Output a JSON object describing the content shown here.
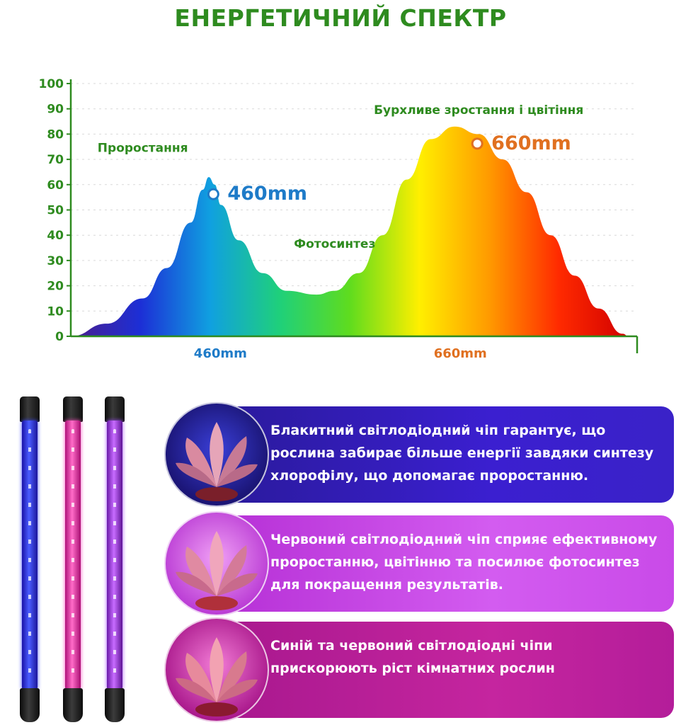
{
  "title": "ЕНЕРГЕТИЧНИЙ СПЕКТР",
  "chart_data": {
    "type": "area",
    "title": "ЕНЕРГЕТИЧНИЙ СПЕКТР",
    "xlabel": "",
    "ylabel": "",
    "ylim": [
      0,
      100
    ],
    "y_ticks": [
      0,
      10,
      20,
      30,
      40,
      50,
      60,
      70,
      80,
      90,
      100
    ],
    "x_labels": [
      {
        "label": "460mm",
        "x": 460
      },
      {
        "label": "660mm",
        "x": 660
      }
    ],
    "xlim": [
      340,
      805
    ],
    "series": [
      {
        "x": [
          340,
          370,
          400,
          420,
          440,
          450,
          455,
          460,
          465,
          480,
          500,
          520,
          545,
          560,
          580,
          600,
          620,
          640,
          660,
          680,
          700,
          720,
          740,
          760,
          780,
          800,
          805
        ],
        "values": [
          0,
          5,
          15,
          27,
          45,
          58,
          63,
          60,
          52,
          38,
          25,
          18,
          16.5,
          18,
          25,
          40,
          62,
          78,
          83,
          80,
          70,
          57,
          40,
          24,
          11,
          1,
          0
        ]
      }
    ],
    "annotations": [
      {
        "text": "Проростання",
        "x": 400,
        "y": 73
      },
      {
        "text": "460mm",
        "x": 460,
        "y": 54
      },
      {
        "text": "Фотосинтез",
        "x": 560,
        "y": 35
      },
      {
        "text": "Бурхливе зростання і цвітіння",
        "x": 680,
        "y": 88
      },
      {
        "text": "660mm",
        "x": 680,
        "y": 74
      }
    ],
    "grid": true,
    "gradient_colors": [
      "#4b1e8c",
      "#1c2fd6",
      "#10a0e0",
      "#1fd07a",
      "#5fdc1e",
      "#ffef00",
      "#ff9a00",
      "#ff2a00",
      "#d10000"
    ]
  },
  "colors": {
    "title": "#2e8b1f",
    "axis": "#2e8b1f",
    "label_460": "#1e7bc8",
    "label_660": "#e07020"
  },
  "panels": [
    {
      "text": "Блакитний світлодіодний чіп гарантує, що\nрослина забирає більше енергії завдяки синтезу\n  хлорофілу, що допомагає проростанню."
    },
    {
      "text": "Червоний світлодіодний чіп сприяє ефективному\n проростанню, цвітінню та посилює фотосинтез\nдля покращення результатів."
    },
    {
      "text": "Синій та червоний світлодіодні чіпи\nприскорюють ріст кімнатних рослин"
    }
  ]
}
